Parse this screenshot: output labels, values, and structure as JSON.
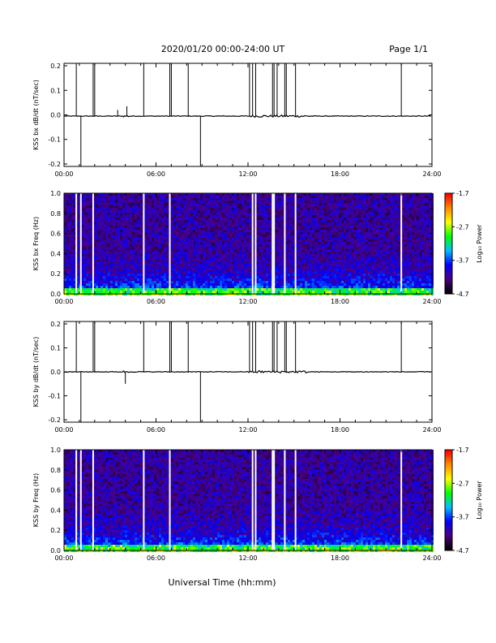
{
  "header": {
    "title": "2020/01/20  00:00-24:00 UT",
    "page": "Page 1/1"
  },
  "xlabel": "Universal Time (hh:mm)",
  "colorbar": {
    "label": "Log₁₀ Power",
    "ticks": [
      "-1.7",
      "-2.7",
      "-3.7",
      "-4.7"
    ],
    "range": [
      -4.7,
      -1.7
    ],
    "colors": [
      "#000000",
      "#4b0082",
      "#0000ff",
      "#00bfff",
      "#00ff00",
      "#ffff00",
      "#ff8c00",
      "#ff0000"
    ]
  },
  "chart_data": [
    {
      "type": "line",
      "ylabel": "KSS bx dB/dt (nT/sec)",
      "xlim": [
        0,
        24
      ],
      "ylim": [
        -0.21,
        0.21
      ],
      "xticks": [
        "00:00",
        "06:00",
        "12:00",
        "18:00",
        "24:00"
      ],
      "yticks": [
        "0.2",
        "0.1",
        "0.0",
        "-0.1",
        "-0.2"
      ],
      "baseline": -0.005,
      "spikes": [
        {
          "t": 0.8,
          "y": 0.21
        },
        {
          "t": 1.1,
          "y": -0.21
        },
        {
          "t": 1.9,
          "y": 0.21
        },
        {
          "t": 2.0,
          "y": 0.21
        },
        {
          "t": 3.5,
          "y": 0.02
        },
        {
          "t": 4.1,
          "y": 0.035
        },
        {
          "t": 5.2,
          "y": 0.21
        },
        {
          "t": 6.9,
          "y": 0.21
        },
        {
          "t": 7.0,
          "y": 0.21
        },
        {
          "t": 8.1,
          "y": 0.21
        },
        {
          "t": 8.9,
          "y": -0.21
        },
        {
          "t": 12.1,
          "y": 0.21
        },
        {
          "t": 12.3,
          "y": 0.21
        },
        {
          "t": 12.5,
          "y": 0.21
        },
        {
          "t": 13.6,
          "y": 0.21
        },
        {
          "t": 13.7,
          "y": 0.21
        },
        {
          "t": 13.9,
          "y": 0.21
        },
        {
          "t": 14.4,
          "y": 0.21
        },
        {
          "t": 14.5,
          "y": 0.21
        },
        {
          "t": 15.1,
          "y": 0.21
        },
        {
          "t": 22.0,
          "y": 0.21
        }
      ]
    },
    {
      "type": "heatmap",
      "ylabel": "KSS bx Freq (Hz)",
      "xlim": [
        0,
        24
      ],
      "ylim": [
        0,
        1.0
      ],
      "xticks": [
        "00:00",
        "06:00",
        "12:00",
        "18:00",
        "24:00"
      ],
      "yticks": [
        "1.0",
        "0.8",
        "0.6",
        "0.4",
        "0.2",
        "0.0"
      ],
      "gaps": [
        0.8,
        1.1,
        1.9,
        5.2,
        6.9,
        12.3,
        12.5,
        13.6,
        13.7,
        14.4,
        15.1,
        22.0
      ]
    },
    {
      "type": "line",
      "ylabel": "KSS by dB/dt (nT/sec)",
      "xlim": [
        0,
        24
      ],
      "ylim": [
        -0.21,
        0.21
      ],
      "xticks": [
        "00:00",
        "06:00",
        "12:00",
        "18:00",
        "24:00"
      ],
      "yticks": [
        "0.2",
        "0.1",
        "0.0",
        "-0.1",
        "-0.2"
      ],
      "baseline": 0.0,
      "spikes": [
        {
          "t": 0.8,
          "y": 0.21
        },
        {
          "t": 1.1,
          "y": -0.21
        },
        {
          "t": 1.9,
          "y": 0.21
        },
        {
          "t": 2.0,
          "y": 0.21
        },
        {
          "t": 4.0,
          "y": -0.05
        },
        {
          "t": 5.2,
          "y": 0.21
        },
        {
          "t": 6.9,
          "y": 0.21
        },
        {
          "t": 7.0,
          "y": 0.21
        },
        {
          "t": 8.1,
          "y": 0.21
        },
        {
          "t": 8.9,
          "y": -0.21
        },
        {
          "t": 12.1,
          "y": 0.21
        },
        {
          "t": 12.3,
          "y": 0.21
        },
        {
          "t": 12.5,
          "y": 0.21
        },
        {
          "t": 13.6,
          "y": 0.21
        },
        {
          "t": 13.7,
          "y": 0.21
        },
        {
          "t": 13.9,
          "y": 0.21
        },
        {
          "t": 14.4,
          "y": 0.21
        },
        {
          "t": 14.5,
          "y": 0.21
        },
        {
          "t": 15.1,
          "y": 0.21
        },
        {
          "t": 22.0,
          "y": 0.21
        }
      ]
    },
    {
      "type": "heatmap",
      "ylabel": "KSS by Freq (Hz)",
      "xlim": [
        0,
        24
      ],
      "ylim": [
        0,
        1.0
      ],
      "xticks": [
        "00:00",
        "06:00",
        "12:00",
        "18:00",
        "24:00"
      ],
      "yticks": [
        "1.0",
        "0.8",
        "0.6",
        "0.4",
        "0.2",
        "0.0"
      ],
      "gaps": [
        0.8,
        1.1,
        1.9,
        5.2,
        6.9,
        12.3,
        12.5,
        13.6,
        13.7,
        14.4,
        15.1,
        22.0
      ]
    }
  ]
}
